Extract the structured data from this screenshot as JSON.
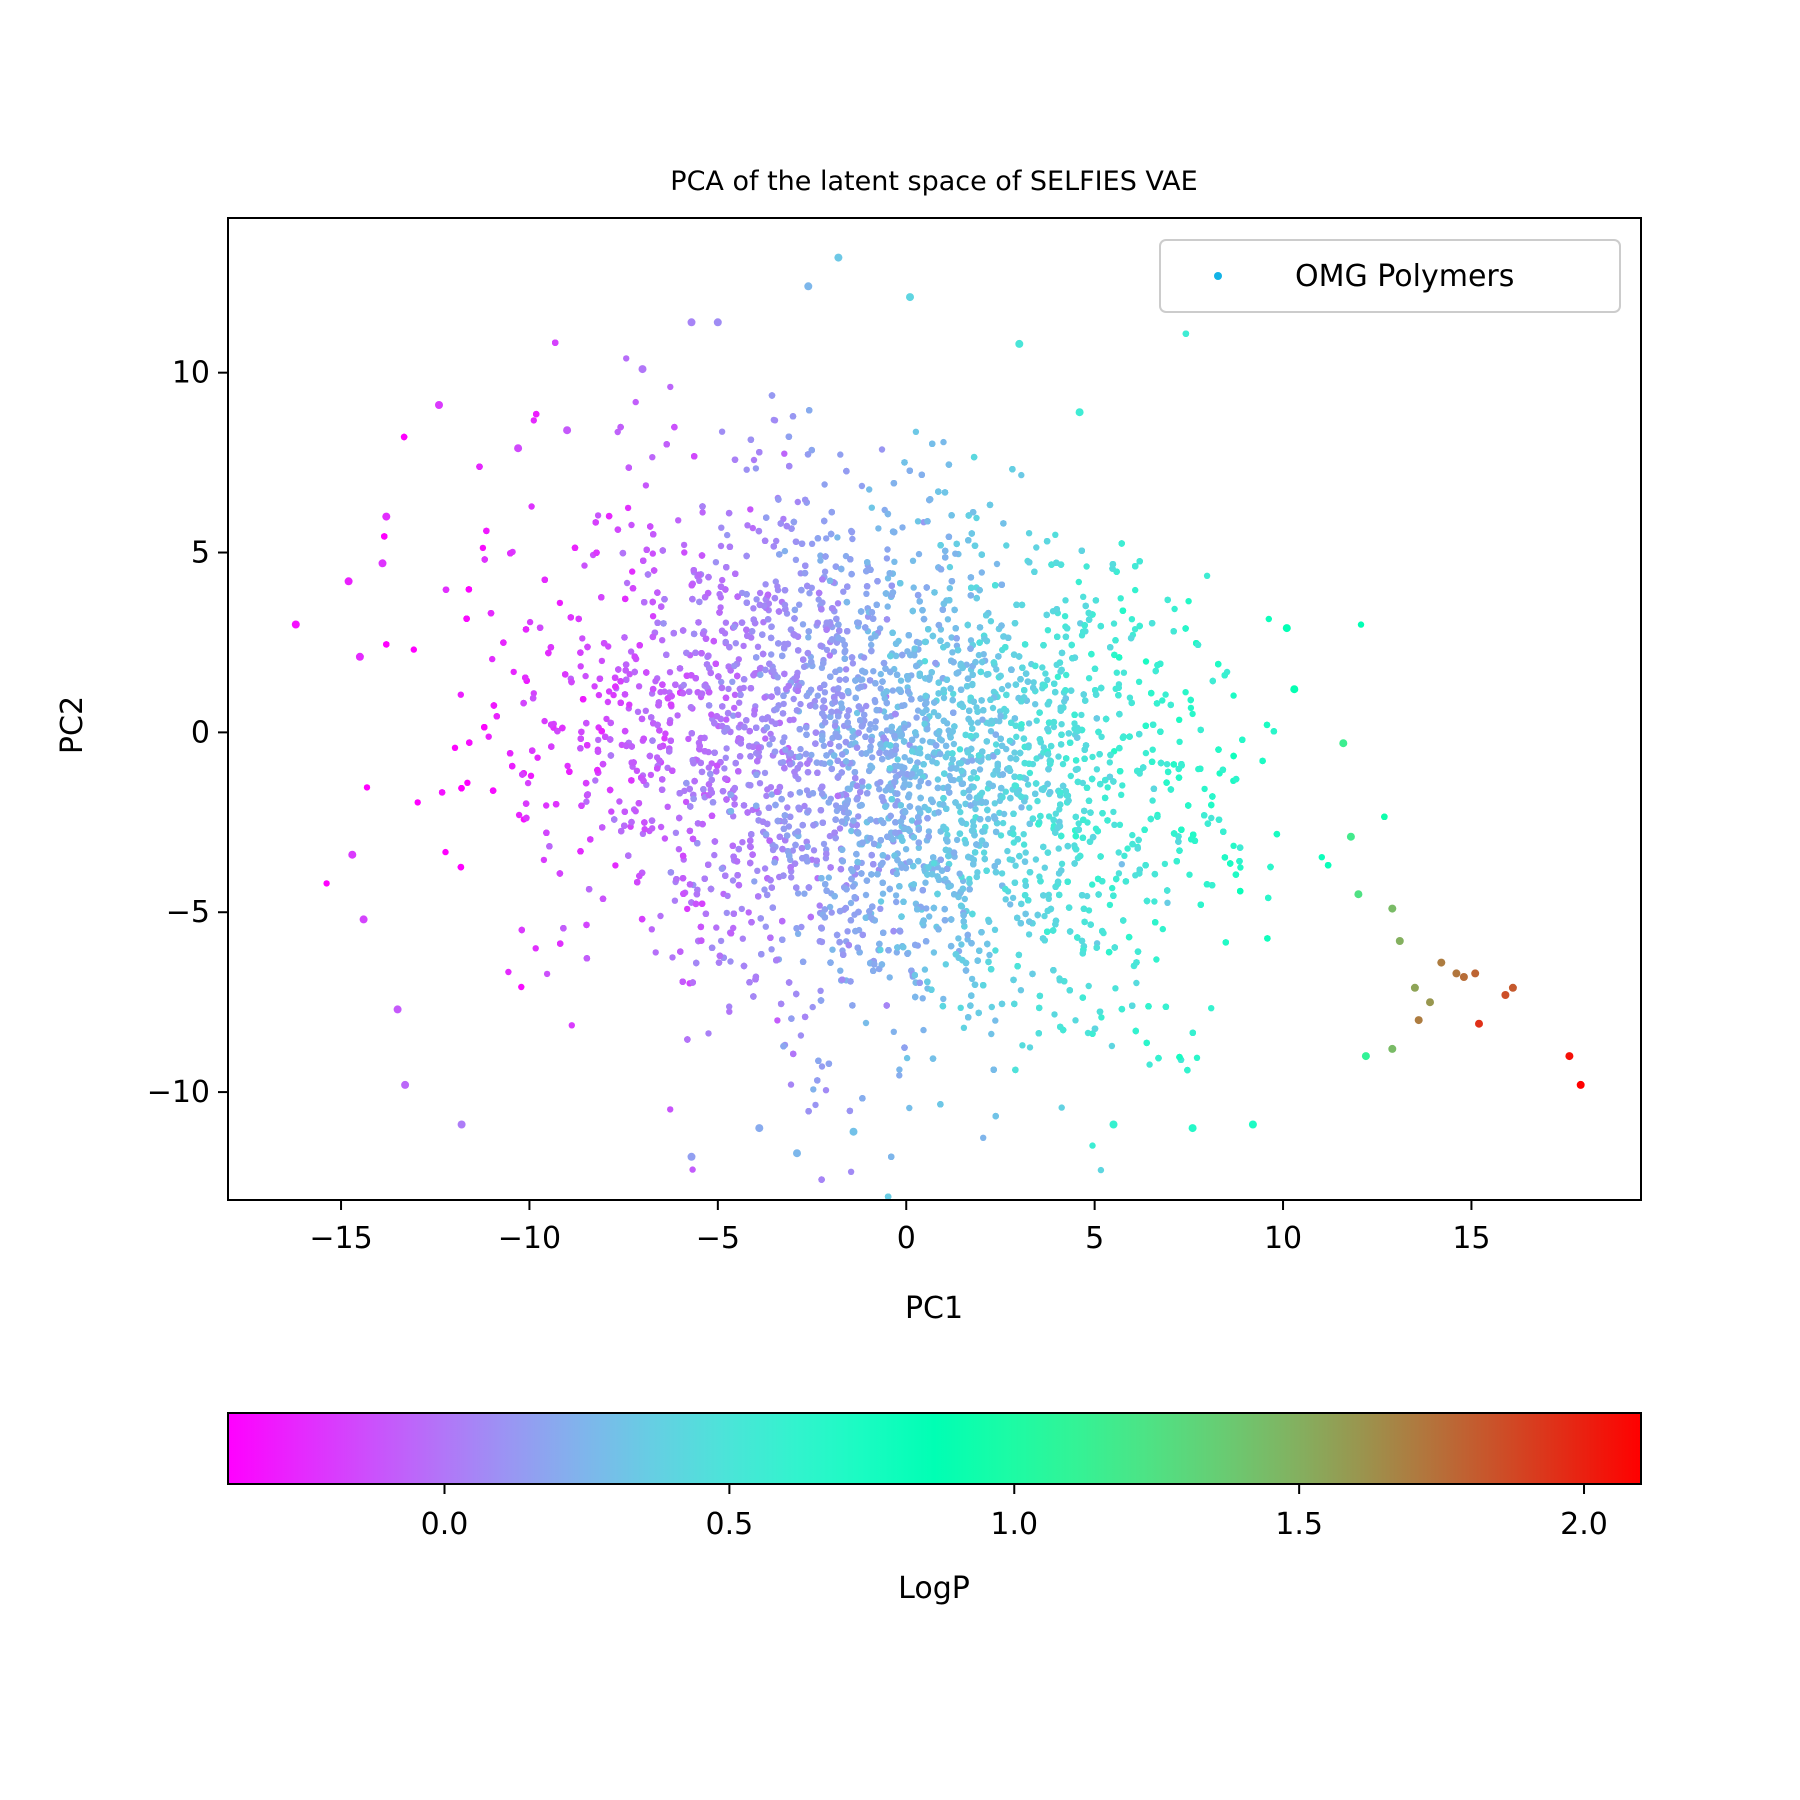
{
  "chart_data": {
    "type": "scatter",
    "title": "PCA of the latent space of SELFIES VAE",
    "xlabel": "PC1",
    "ylabel": "PC2",
    "xlim": [
      -18.0,
      19.5
    ],
    "ylim": [
      -13.0,
      14.3
    ],
    "xticks": [
      -15,
      -10,
      -5,
      0,
      5,
      10,
      15
    ],
    "yticks": [
      -10,
      -5,
      0,
      5,
      10
    ],
    "grid": false,
    "legend": {
      "placement": "top-right",
      "entries": [
        "OMG Polymers"
      ]
    },
    "series": [
      {
        "name": "OMG Polymers",
        "color_by": "LogP",
        "description_of_bulk": "dense cloud of ~100k points roughly spanning PC1 -12..12, PC2 -11..11",
        "outliers": [
          {
            "x": -16.2,
            "y": 3.0,
            "c": -0.33
          },
          {
            "x": -14.8,
            "y": 4.2,
            "c": -0.28
          },
          {
            "x": -14.5,
            "y": 2.1,
            "c": -0.25
          },
          {
            "x": -14.7,
            "y": -3.4,
            "c": -0.2
          },
          {
            "x": -14.4,
            "y": -5.2,
            "c": -0.17
          },
          {
            "x": -13.8,
            "y": 6.0,
            "c": -0.24
          },
          {
            "x": -13.9,
            "y": 4.7,
            "c": -0.22
          },
          {
            "x": -13.3,
            "y": -9.8,
            "c": -0.05
          },
          {
            "x": -13.5,
            "y": -7.7,
            "c": -0.1
          },
          {
            "x": -12.4,
            "y": 9.1,
            "c": -0.2
          },
          {
            "x": -11.8,
            "y": -10.9,
            "c": 0.02
          },
          {
            "x": -10.3,
            "y": 7.9,
            "c": -0.15
          },
          {
            "x": -9.0,
            "y": 8.4,
            "c": -0.1
          },
          {
            "x": -7.0,
            "y": 10.1,
            "c": 0.0
          },
          {
            "x": -5.7,
            "y": 11.4,
            "c": 0.05
          },
          {
            "x": -5.0,
            "y": 11.4,
            "c": 0.08
          },
          {
            "x": -2.6,
            "y": 12.4,
            "c": 0.25
          },
          {
            "x": -1.8,
            "y": 13.2,
            "c": 0.33
          },
          {
            "x": 0.1,
            "y": 12.1,
            "c": 0.4
          },
          {
            "x": 3.0,
            "y": 10.8,
            "c": 0.5
          },
          {
            "x": 4.6,
            "y": 8.9,
            "c": 0.55
          },
          {
            "x": -5.7,
            "y": -11.8,
            "c": 0.15
          },
          {
            "x": -2.9,
            "y": -11.7,
            "c": 0.25
          },
          {
            "x": -3.9,
            "y": -11.0,
            "c": 0.2
          },
          {
            "x": -1.4,
            "y": -11.1,
            "c": 0.3
          },
          {
            "x": 5.5,
            "y": -10.9,
            "c": 0.6
          },
          {
            "x": 7.6,
            "y": -11.0,
            "c": 0.68
          },
          {
            "x": 9.2,
            "y": -10.9,
            "c": 0.72
          },
          {
            "x": 10.1,
            "y": 2.9,
            "c": 0.85
          },
          {
            "x": 10.3,
            "y": 1.2,
            "c": 0.88
          },
          {
            "x": 11.6,
            "y": -0.3,
            "c": 1.15
          },
          {
            "x": 11.8,
            "y": -2.9,
            "c": 1.18
          },
          {
            "x": 12.0,
            "y": -4.5,
            "c": 1.25
          },
          {
            "x": 12.9,
            "y": -4.9,
            "c": 1.45
          },
          {
            "x": 13.1,
            "y": -5.8,
            "c": 1.5
          },
          {
            "x": 12.9,
            "y": -8.8,
            "c": 1.45
          },
          {
            "x": 12.2,
            "y": -9.0,
            "c": 1.1
          },
          {
            "x": 13.5,
            "y": -7.1,
            "c": 1.55
          },
          {
            "x": 13.6,
            "y": -8.0,
            "c": 1.7
          },
          {
            "x": 13.9,
            "y": -7.5,
            "c": 1.6
          },
          {
            "x": 14.2,
            "y": -6.4,
            "c": 1.7
          },
          {
            "x": 14.6,
            "y": -6.7,
            "c": 1.72
          },
          {
            "x": 14.8,
            "y": -6.8,
            "c": 1.75
          },
          {
            "x": 15.1,
            "y": -6.7,
            "c": 1.78
          },
          {
            "x": 15.2,
            "y": -8.1,
            "c": 1.95
          },
          {
            "x": 15.9,
            "y": -7.3,
            "c": 1.85
          },
          {
            "x": 16.1,
            "y": -7.1,
            "c": 1.82
          },
          {
            "x": 17.6,
            "y": -9.0,
            "c": 2.05
          },
          {
            "x": 17.9,
            "y": -9.8,
            "c": 2.1
          }
        ]
      }
    ],
    "colorbar": {
      "label": "LogP",
      "range": [
        -0.38,
        2.1
      ],
      "ticks": [
        "0.0",
        "0.5",
        "1.0",
        "1.5",
        "2.0"
      ],
      "tick_values": [
        0.0,
        0.5,
        1.0,
        1.5,
        2.0
      ],
      "orientation": "horizontal",
      "colormap": "rainbow"
    }
  }
}
